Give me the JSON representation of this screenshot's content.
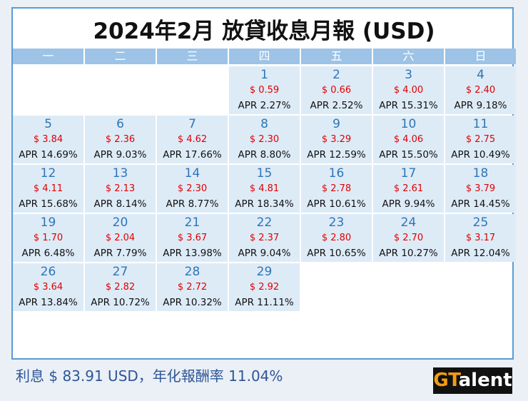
{
  "header": {
    "title": "2024年2月 放貸收息月報 (USD)"
  },
  "weekdays": [
    "一",
    "二",
    "三",
    "四",
    "五",
    "六",
    "日"
  ],
  "days": [
    {
      "day": 1,
      "amount": "$ 0.59",
      "apr": "APR 2.27%"
    },
    {
      "day": 2,
      "amount": "$ 0.66",
      "apr": "APR 2.52%"
    },
    {
      "day": 3,
      "amount": "$ 4.00",
      "apr": "APR 15.31%"
    },
    {
      "day": 4,
      "amount": "$ 2.40",
      "apr": "APR 9.18%"
    },
    {
      "day": 5,
      "amount": "$ 3.84",
      "apr": "APR 14.69%"
    },
    {
      "day": 6,
      "amount": "$ 2.36",
      "apr": "APR 9.03%"
    },
    {
      "day": 7,
      "amount": "$ 4.62",
      "apr": "APR 17.66%"
    },
    {
      "day": 8,
      "amount": "$ 2.30",
      "apr": "APR 8.80%"
    },
    {
      "day": 9,
      "amount": "$ 3.29",
      "apr": "APR 12.59%"
    },
    {
      "day": 10,
      "amount": "$ 4.06",
      "apr": "APR 15.50%"
    },
    {
      "day": 11,
      "amount": "$ 2.75",
      "apr": "APR 10.49%"
    },
    {
      "day": 12,
      "amount": "$ 4.11",
      "apr": "APR 15.68%"
    },
    {
      "day": 13,
      "amount": "$ 2.13",
      "apr": "APR 8.14%"
    },
    {
      "day": 14,
      "amount": "$ 2.30",
      "apr": "APR 8.77%"
    },
    {
      "day": 15,
      "amount": "$ 4.81",
      "apr": "APR 18.34%"
    },
    {
      "day": 16,
      "amount": "$ 2.78",
      "apr": "APR 10.61%"
    },
    {
      "day": 17,
      "amount": "$ 2.61",
      "apr": "APR 9.94%"
    },
    {
      "day": 18,
      "amount": "$ 3.79",
      "apr": "APR 14.45%"
    },
    {
      "day": 19,
      "amount": "$ 1.70",
      "apr": "APR 6.48%"
    },
    {
      "day": 20,
      "amount": "$ 2.04",
      "apr": "APR 7.79%"
    },
    {
      "day": 21,
      "amount": "$ 3.67",
      "apr": "APR 13.98%"
    },
    {
      "day": 22,
      "amount": "$ 2.37",
      "apr": "APR 9.04%"
    },
    {
      "day": 23,
      "amount": "$ 2.80",
      "apr": "APR 10.65%"
    },
    {
      "day": 24,
      "amount": "$ 2.70",
      "apr": "APR 10.27%"
    },
    {
      "day": 25,
      "amount": "$ 3.17",
      "apr": "APR 12.04%"
    },
    {
      "day": 26,
      "amount": "$ 3.64",
      "apr": "APR 13.84%"
    },
    {
      "day": 27,
      "amount": "$ 2.82",
      "apr": "APR 10.72%"
    },
    {
      "day": 28,
      "amount": "$ 2.72",
      "apr": "APR 10.32%"
    },
    {
      "day": 29,
      "amount": "$ 2.92",
      "apr": "APR 11.11%"
    }
  ],
  "footer": {
    "summary": "利息 $ 83.91 USD，年化報酬率 11.04%"
  },
  "logo": [
    "GT",
    "alent"
  ]
}
